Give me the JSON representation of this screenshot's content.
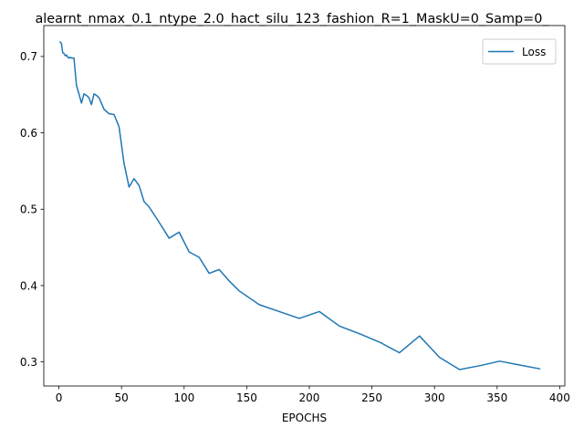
{
  "chart_data": {
    "type": "line",
    "title": "alearnt_nmax_0.1_ntype_2.0_hact_silu_123_fashion_R=1_MaskU=0_Samp=0_",
    "xlabel": "EPOCHS",
    "ylabel": "",
    "xlim": [
      -12.1,
      404.1
    ],
    "ylim": [
      0.2685,
      0.7405
    ],
    "xticks": [
      0,
      50,
      100,
      150,
      200,
      250,
      300,
      350,
      400
    ],
    "yticks": [
      0.3,
      0.4,
      0.5,
      0.6,
      0.7
    ],
    "grid": false,
    "legend_position": "upper right",
    "series": [
      {
        "name": "Loss",
        "color": "#1f77b4",
        "x": [
          1,
          2,
          3,
          4,
          5,
          6,
          7,
          8,
          9,
          10,
          11,
          12,
          14,
          16,
          18,
          20,
          22,
          24,
          26,
          28,
          30,
          32,
          36,
          40,
          44,
          48,
          52,
          56,
          60,
          64,
          68,
          72,
          80,
          88,
          96,
          104,
          112,
          120,
          128,
          136,
          144,
          160,
          176,
          192,
          208,
          224,
          240,
          256,
          272,
          288,
          304,
          320,
          336,
          352,
          368,
          384
        ],
        "values": [
          0.719,
          0.717,
          0.705,
          0.704,
          0.701,
          0.702,
          0.699,
          0.698,
          0.699,
          0.698,
          0.698,
          0.698,
          0.662,
          0.651,
          0.639,
          0.651,
          0.649,
          0.646,
          0.637,
          0.651,
          0.649,
          0.646,
          0.631,
          0.625,
          0.624,
          0.608,
          0.56,
          0.529,
          0.54,
          0.531,
          0.51,
          0.503,
          0.483,
          0.462,
          0.47,
          0.444,
          0.437,
          0.416,
          0.421,
          0.406,
          0.393,
          0.375,
          0.366,
          0.357,
          0.366,
          0.347,
          0.337,
          0.326,
          0.312,
          0.334,
          0.306,
          0.29,
          0.295,
          0.301,
          0.296,
          0.291
        ]
      }
    ]
  }
}
